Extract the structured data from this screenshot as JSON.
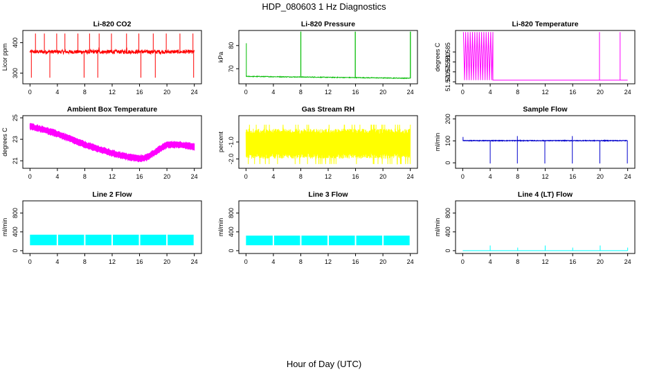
{
  "page": {
    "title": "HDP_080603  1 Hz Diagnostics",
    "xlabel": "Hour of Day (UTC)"
  },
  "chart_data": [
    {
      "type": "line",
      "title": "Li-820 CO2",
      "ylabel": "Licor ppm",
      "color": "#ff0000",
      "xlim": [
        0,
        24
      ],
      "xticks": [
        0,
        4,
        8,
        12,
        16,
        20,
        24
      ],
      "ylim": [
        265,
        440
      ],
      "yticks": [
        300,
        400
      ],
      "baseline": 370,
      "noise": 6,
      "spikes_up": [
        0.8,
        2.1,
        3.9,
        5.1,
        7.0,
        8.7,
        10.1,
        11.9,
        14.1,
        15.9,
        18.0,
        19.9,
        21.9,
        23.8
      ],
      "spike_up_value": 430,
      "spikes_down": [
        0.2,
        2.9,
        7.9,
        9.9,
        16.2,
        18.3,
        23.9
      ],
      "spike_down_value": 285
    },
    {
      "type": "line",
      "title": "Li-820 Pressure",
      "ylabel": "kPa",
      "color": "#00bb00",
      "xlim": [
        0,
        24
      ],
      "xticks": [
        0,
        4,
        8,
        12,
        16,
        20,
        24
      ],
      "ylim": [
        63.5,
        86.5
      ],
      "yticks": [
        70,
        80
      ],
      "baseline_start": 66.7,
      "baseline_end": 65.9,
      "noise": 0.15,
      "start_value": 81,
      "spikes_up": [
        8.0,
        15.95,
        24.0
      ],
      "spike_up_value": 86
    },
    {
      "type": "line",
      "title": "Li-820 Temperature",
      "ylabel": "degrees C",
      "color": "#ff00ff",
      "xlim": [
        0,
        24
      ],
      "xticks": [
        0,
        4,
        8,
        12,
        16,
        20,
        24
      ],
      "ylim": [
        51.569,
        51.5958
      ],
      "yticks": [
        51.57,
        51.575,
        51.58,
        51.585
      ],
      "ytick_labels": [
        "51.570",
        "51.575",
        "51.580",
        "51.585"
      ],
      "low_value": 51.5708,
      "high_value": 51.595,
      "oscillation_until": 4.4,
      "spikes_up": [
        19.9,
        22.9
      ]
    },
    {
      "type": "line",
      "title": "Ambient Box Temperature",
      "ylabel": "degrees C",
      "color": "#ff00ff",
      "xlim": [
        0,
        24
      ],
      "xticks": [
        0,
        4,
        8,
        12,
        16,
        20,
        24
      ],
      "ylim": [
        20.3,
        25.2
      ],
      "yticks": [
        21,
        23,
        25
      ],
      "curve_x": [
        0,
        2,
        4,
        6,
        8,
        10,
        12,
        14,
        16,
        17,
        18,
        20,
        22,
        24
      ],
      "curve_y": [
        24.2,
        23.9,
        23.5,
        23.0,
        22.5,
        22.1,
        21.7,
        21.4,
        21.2,
        21.3,
        21.7,
        22.5,
        22.5,
        22.3
      ],
      "band": 0.5
    },
    {
      "type": "line",
      "title": "Gas Stream RH",
      "ylabel": "percent",
      "color": "#ffff00",
      "xlim": [
        0,
        24
      ],
      "xticks": [
        0,
        4,
        8,
        12,
        16,
        20,
        24
      ],
      "ylim": [
        -2.55,
        0.55
      ],
      "yticks": [
        -2.0,
        -1.0
      ],
      "ytick_labels": [
        "-2.0",
        "-1.0"
      ],
      "center": -1.1,
      "band_low": -1.95,
      "band_high": -0.35
    },
    {
      "type": "line",
      "title": "Sample Flow",
      "ylabel": "ml/min",
      "color": "#0000cc",
      "xlim": [
        0,
        24
      ],
      "xticks": [
        0,
        4,
        8,
        12,
        16,
        20,
        24
      ],
      "ylim": [
        -25,
        215
      ],
      "yticks": [
        0,
        100,
        200
      ],
      "baseline": 101,
      "noise": 1.5,
      "start_value": 118,
      "spikes_down": [
        4.0,
        7.95,
        11.95,
        15.95,
        19.95,
        23.95
      ],
      "spike_down_value": -3,
      "spikes_up": [
        7.95,
        15.95
      ],
      "spike_up_value": 122
    },
    {
      "type": "line",
      "title": "Line 2 Flow",
      "ylabel": "ml/min",
      "color": "#00ffff",
      "xlim": [
        0,
        24
      ],
      "xticks": [
        0,
        4,
        8,
        12,
        16,
        20,
        24
      ],
      "ylim": [
        -60,
        1060
      ],
      "yticks": [
        0,
        400,
        800
      ],
      "band_low": 115,
      "band_high": 340,
      "gaps": [
        4.0,
        8.0,
        12.0,
        16.0,
        20.0,
        24.0
      ]
    },
    {
      "type": "line",
      "title": "Line 3 Flow",
      "ylabel": "ml/min",
      "color": "#00ffff",
      "xlim": [
        0,
        24
      ],
      "xticks": [
        0,
        4,
        8,
        12,
        16,
        20,
        24
      ],
      "ylim": [
        -60,
        1060
      ],
      "yticks": [
        0,
        400,
        800
      ],
      "band_low": 115,
      "band_high": 320,
      "gaps": [
        4.0,
        8.0,
        12.0,
        16.0,
        20.0,
        24.0
      ]
    },
    {
      "type": "line",
      "title": "Line 4 (LT) Flow",
      "ylabel": "ml/min",
      "color": "#00ffff",
      "xlim": [
        0,
        24
      ],
      "xticks": [
        0,
        4,
        8,
        12,
        16,
        20,
        24
      ],
      "ylim": [
        -60,
        1060
      ],
      "yticks": [
        0,
        400,
        800
      ],
      "baseline": 0,
      "spikes_up": [
        4.0,
        8.0,
        12.0,
        16.0,
        20.0,
        24.0
      ],
      "spike_up_values": [
        110,
        65,
        110,
        65,
        110,
        65
      ]
    }
  ]
}
